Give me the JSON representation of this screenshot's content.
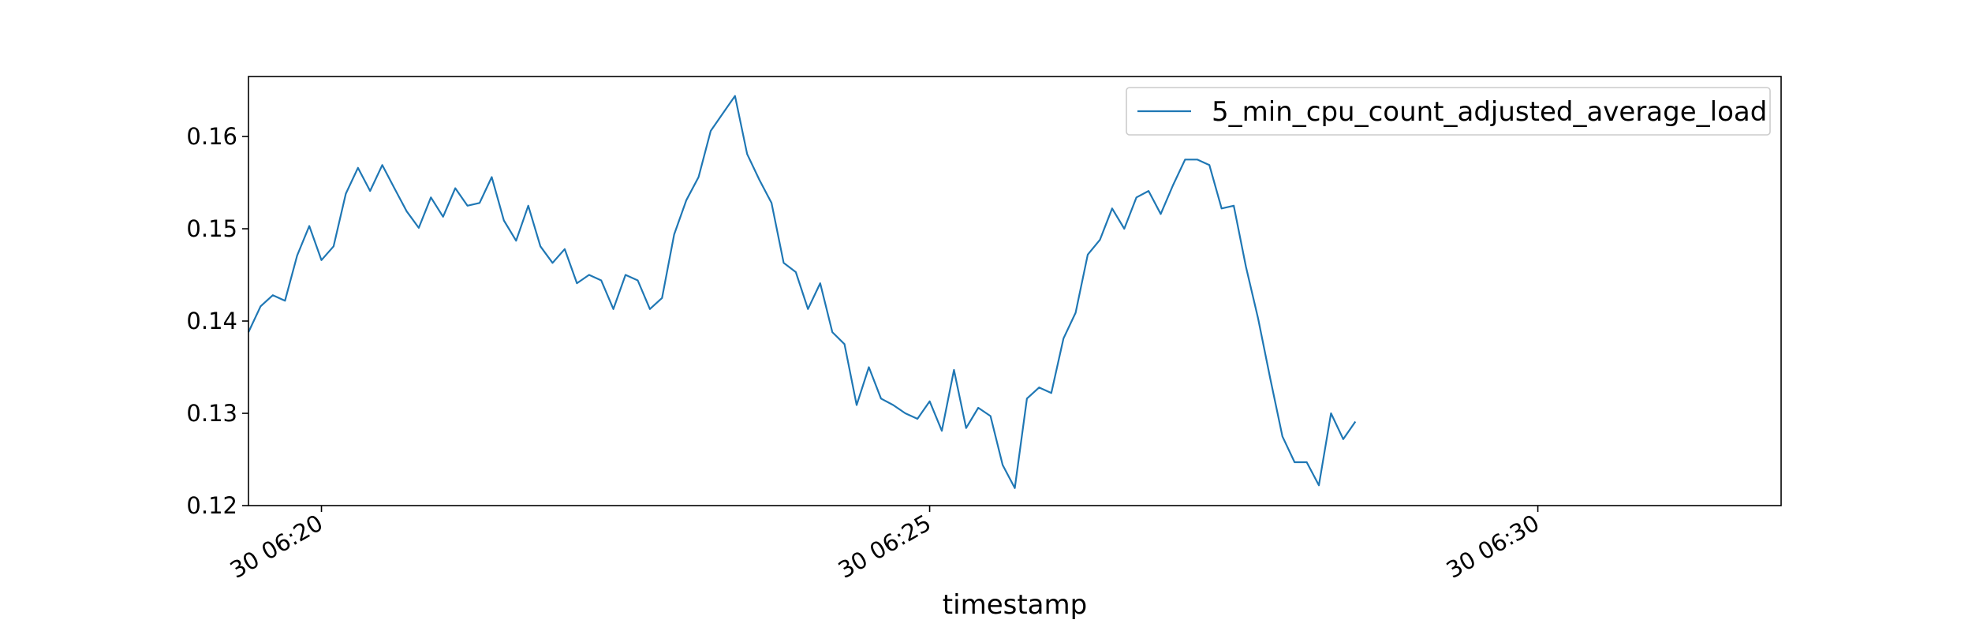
{
  "chart_data": {
    "type": "line",
    "title": "",
    "xlabel": "timestamp",
    "ylabel": "",
    "x_ticks": [
      "30 06:20",
      "30 06:25",
      "30 06:30"
    ],
    "x_tick_values": [
      6,
      56,
      106
    ],
    "y_ticks": [
      "0.12",
      "0.13",
      "0.14",
      "0.15",
      "0.16"
    ],
    "ylim": [
      0.12,
      0.1665
    ],
    "xlim": [
      0,
      126
    ],
    "x_unit": "steps of 6 seconds after 06:19:24",
    "legend_position": "top-right",
    "grid": false,
    "series": [
      {
        "name": "5_min_cpu_count_adjusted_average_load",
        "color": "#1f77b4",
        "values": [
          0.1388,
          0.1416,
          0.1428,
          0.1422,
          0.1471,
          0.1503,
          0.1466,
          0.1481,
          0.1538,
          0.1566,
          0.1541,
          0.1569,
          0.1544,
          0.1519,
          0.1501,
          0.1534,
          0.1513,
          0.1544,
          0.1525,
          0.1528,
          0.1556,
          0.1509,
          0.1487,
          0.1525,
          0.1481,
          0.1463,
          0.1478,
          0.1441,
          0.145,
          0.1444,
          0.1413,
          0.145,
          0.1444,
          0.1413,
          0.1425,
          0.1494,
          0.1531,
          0.1556,
          0.1606,
          0.1625,
          0.1644,
          0.1581,
          0.1553,
          0.1528,
          0.1463,
          0.1453,
          0.1413,
          0.1441,
          0.1388,
          0.1375,
          0.1309,
          0.135,
          0.1316,
          0.1309,
          0.13,
          0.1294,
          0.1313,
          0.1281,
          0.1347,
          0.1284,
          0.1306,
          0.1297,
          0.1244,
          0.1219,
          0.1316,
          0.1328,
          0.1322,
          0.1381,
          0.1409,
          0.1472,
          0.1488,
          0.1522,
          0.15,
          0.1534,
          0.1541,
          0.1516,
          0.1547,
          0.1575,
          0.1575,
          0.1569,
          0.1522,
          0.1525,
          0.1459,
          0.1403,
          0.1338,
          0.1275,
          0.1247,
          0.1247,
          0.1222,
          0.13,
          0.1272,
          0.1291
        ]
      }
    ]
  }
}
